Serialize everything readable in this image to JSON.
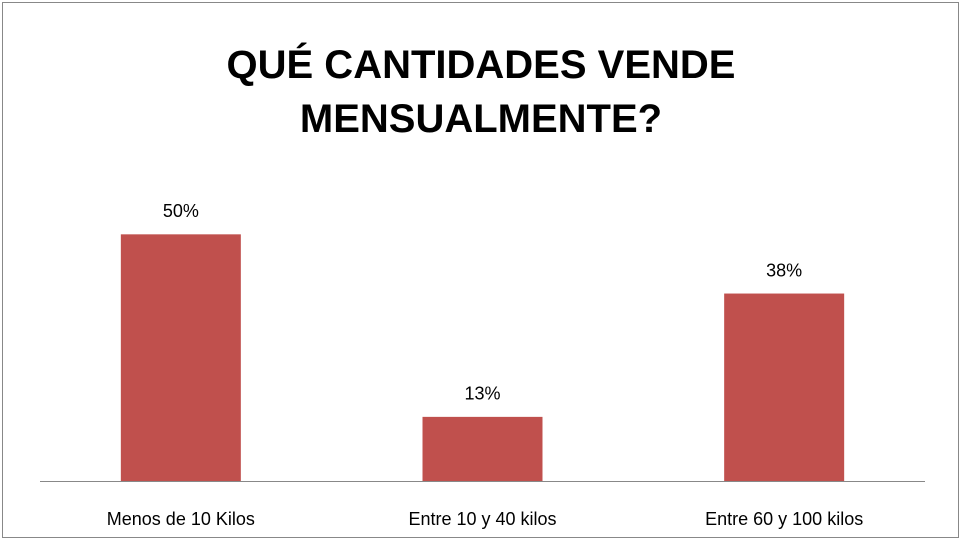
{
  "chart_data": {
    "type": "bar",
    "title": "QUÉ CANTIDADES VENDE MENSUALMENTE?",
    "categories": [
      "Menos de 10 Kilos",
      "Entre 10 y 40 kilos",
      "Entre 60 y 100 kilos"
    ],
    "values": [
      50,
      13,
      38
    ],
    "value_labels": [
      "50%",
      "13%",
      "38%"
    ],
    "color": "#c0504d",
    "ylim": [
      0,
      60
    ]
  }
}
